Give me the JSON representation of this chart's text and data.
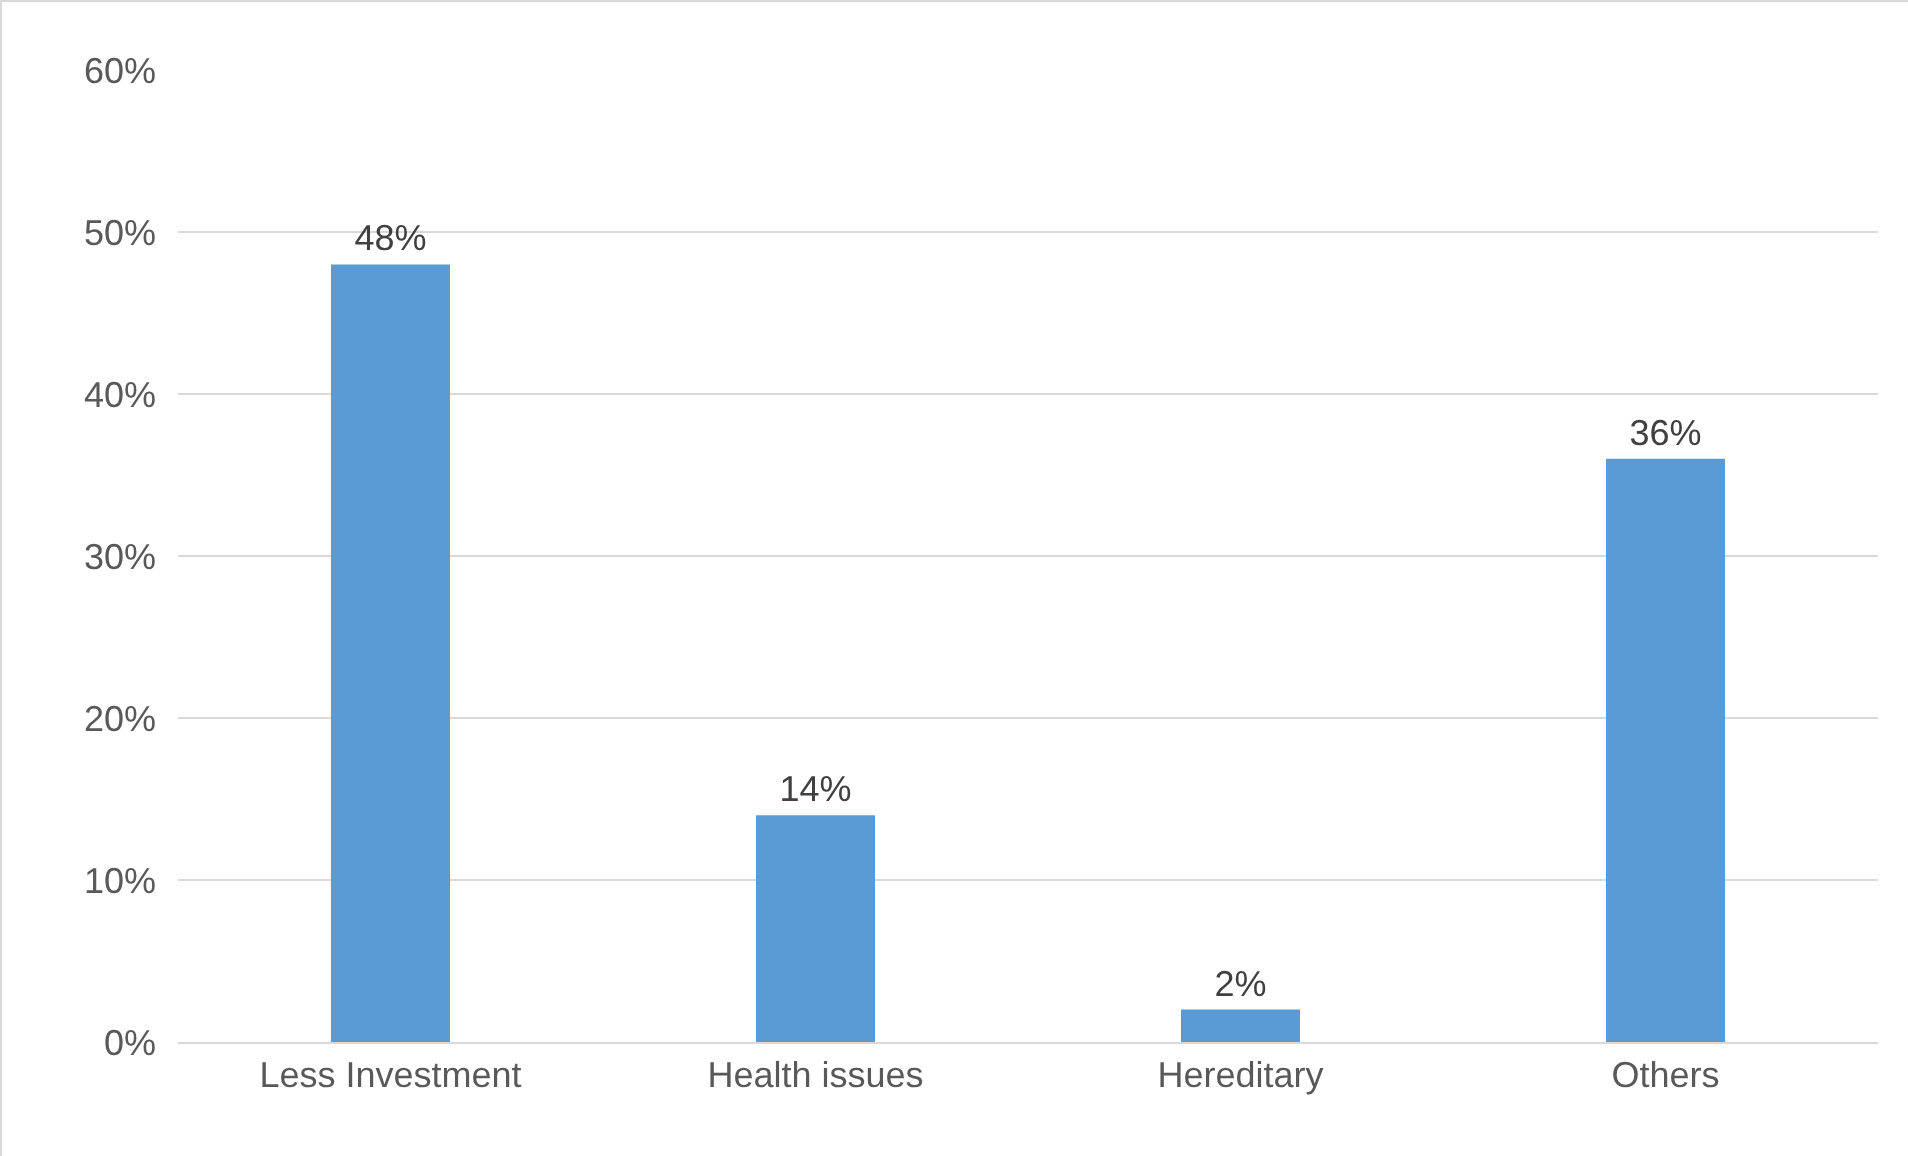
{
  "chart_data": {
    "type": "bar",
    "categories": [
      "Less Investment",
      "Health issues",
      "Hereditary",
      "Others"
    ],
    "values": [
      48,
      14,
      2,
      36
    ],
    "value_labels": [
      "48%",
      "14%",
      "2%",
      "36%"
    ],
    "color": "#5b9bd5",
    "ylim": [
      0,
      60
    ],
    "yticks": [
      {
        "value": 0,
        "label": "0%"
      },
      {
        "value": 10,
        "label": "10%"
      },
      {
        "value": 20,
        "label": "20%"
      },
      {
        "value": 30,
        "label": "30%"
      },
      {
        "value": 40,
        "label": "40%"
      },
      {
        "value": 50,
        "label": "50%"
      },
      {
        "value": 60,
        "label": "60%"
      }
    ],
    "grid": "y"
  }
}
